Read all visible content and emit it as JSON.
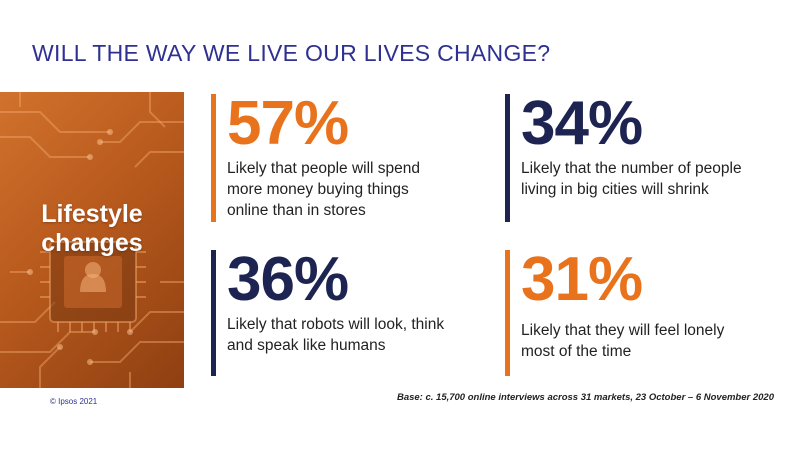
{
  "slide": {
    "title": "WILL THE WAY WE LIVE OUR LIVES CHANGE?",
    "image_label_line1": "Lifestyle",
    "image_label_line2": "changes",
    "stats": [
      {
        "value": "57%",
        "line1": "Likely that people will spend",
        "line2": "more money buying things",
        "line3": "online than in stores",
        "color": "#e8731c"
      },
      {
        "value": "34%",
        "line1": "Likely that the number of people",
        "line2": "living in big cities will shrink",
        "color": "#1e2452"
      },
      {
        "value": "36%",
        "line1": "Likely that robots will look, think",
        "line2": "and speak like humans",
        "color": "#1e2452"
      },
      {
        "value": "31%",
        "line1": "Likely that they will feel lonely",
        "line2": "most of the time",
        "color": "#e8731c"
      }
    ],
    "copyright": "© Ipsos 2021",
    "base_note": "Base: c. 15,700 online interviews across 31 markets,  23 October – 6 November 2020"
  },
  "colors": {
    "title": "#2e3192",
    "accent_orange": "#e8731c",
    "accent_navy": "#1e2452"
  },
  "icons": {
    "image_panel": "circuit-board-chip-image"
  }
}
